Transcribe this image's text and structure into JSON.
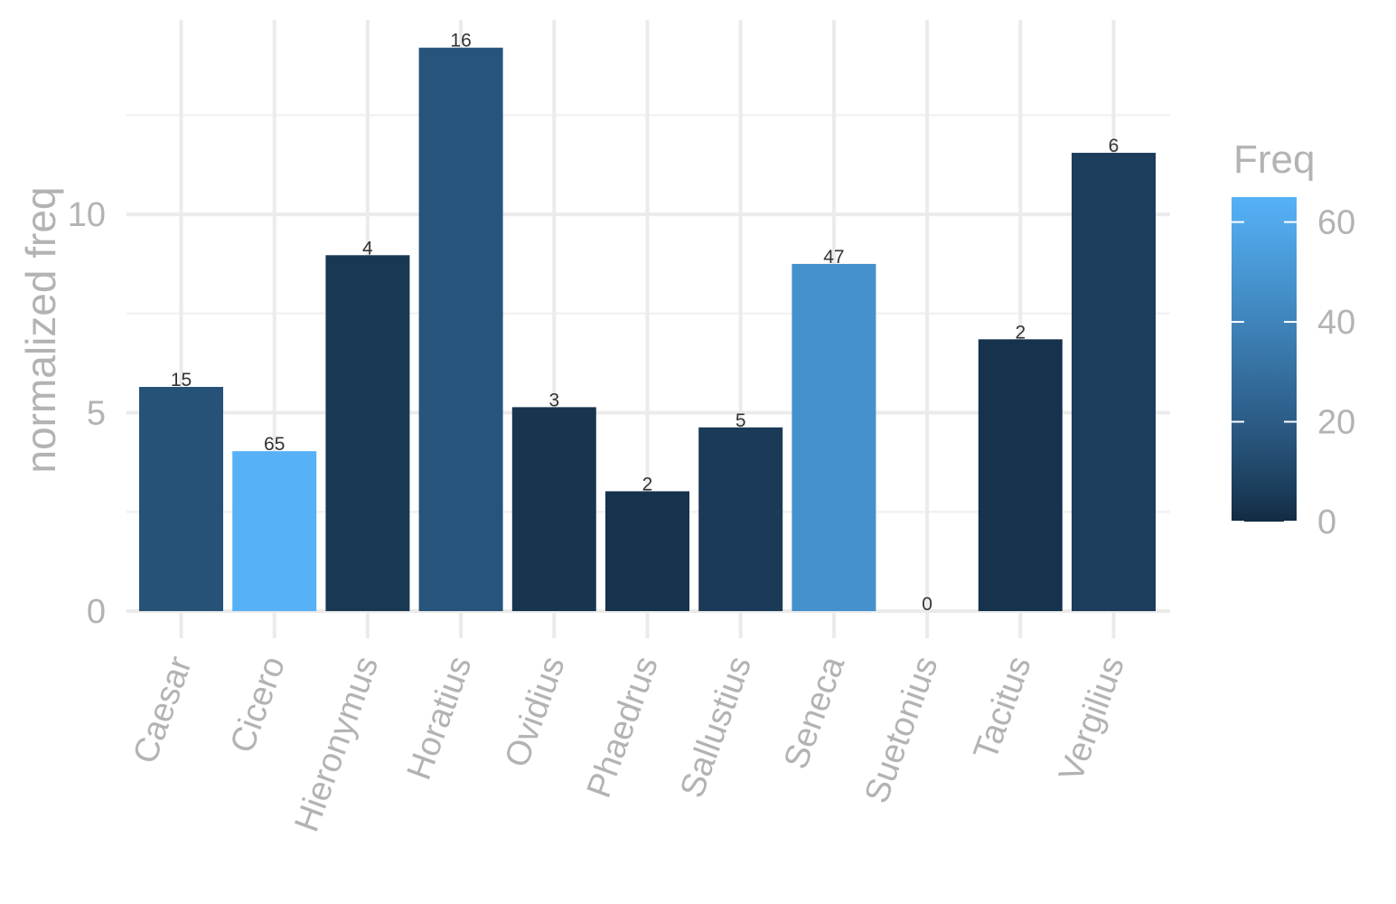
{
  "chart_data": {
    "type": "bar",
    "categories": [
      "Caesar",
      "Cicero",
      "Hieronymus",
      "Horatius",
      "Ovidius",
      "Phaedrus",
      "Sallustius",
      "Seneca",
      "Suetonius",
      "Tacitus",
      "Vergilius"
    ],
    "values": [
      5.65,
      4.03,
      8.97,
      14.2,
      5.14,
      3.02,
      4.63,
      8.75,
      0,
      6.85,
      11.55
    ],
    "freq": [
      15,
      65,
      4,
      16,
      3,
      2,
      5,
      47,
      0,
      2,
      6
    ],
    "data_labels": [
      "15",
      "65",
      "4",
      "16",
      "3",
      "2",
      "5",
      "47",
      "0",
      "2",
      "6"
    ],
    "ylabel": "normalized freq",
    "xlabel": "",
    "ylim": [
      0,
      14.9
    ],
    "yticks": [
      0,
      5,
      10
    ],
    "ytick_labels": [
      "0",
      "5",
      "10"
    ],
    "grid": true,
    "legend": {
      "title": "Freq",
      "placement": "right",
      "type": "colorbar",
      "range": [
        0,
        65
      ],
      "ticks": [
        0,
        20,
        40,
        60
      ],
      "tick_labels": [
        "0",
        "20",
        "40",
        "60"
      ],
      "low_color": "#132B43",
      "high_color": "#56B1F7"
    }
  }
}
